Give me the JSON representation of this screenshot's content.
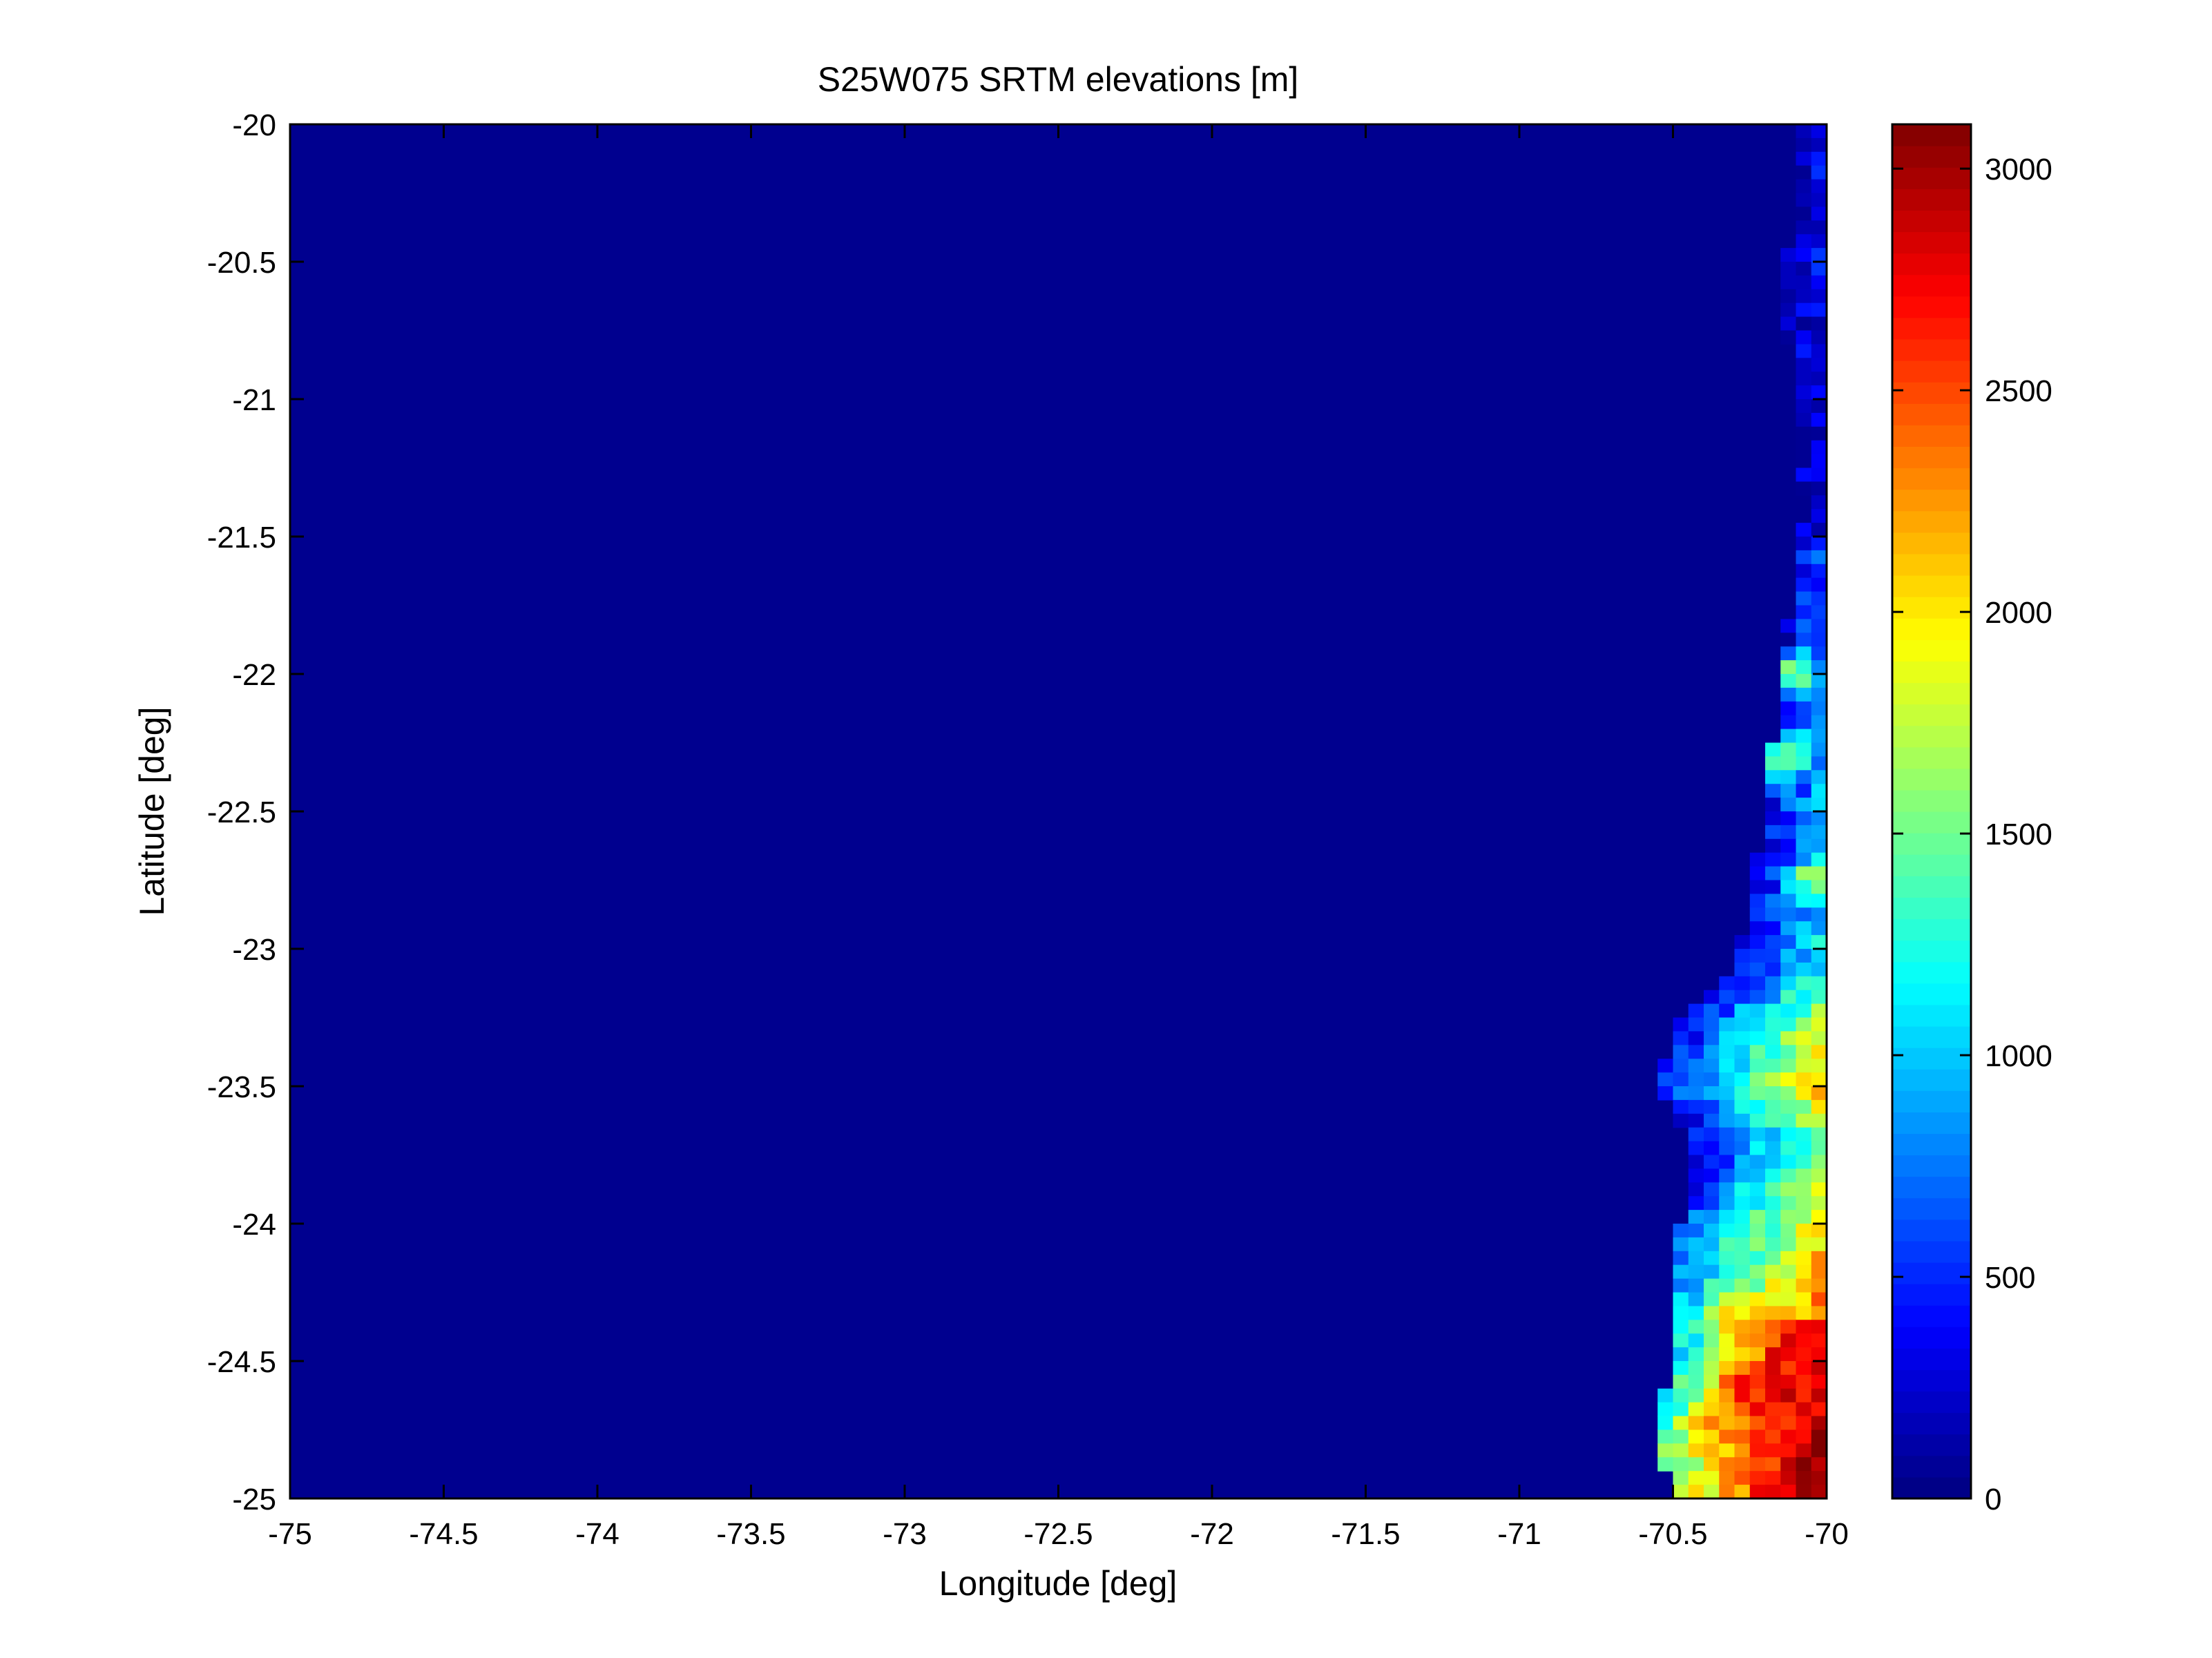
{
  "chart_data": {
    "type": "heatmap",
    "title": "S25W075 SRTM elevations [m]",
    "xlabel": "Longitude [deg]",
    "ylabel": "Latitude [deg]",
    "xlim": [
      -75,
      -70
    ],
    "ylim": [
      -25,
      -20
    ],
    "x_ticks": [
      -75,
      -74.5,
      -74,
      -73.5,
      -73,
      -72.5,
      -72,
      -71.5,
      -71,
      -70.5,
      -70
    ],
    "x_tick_labels": [
      "-75",
      "-74.5",
      "-74",
      "-73.5",
      "-73",
      "-72.5",
      "-72",
      "-71.5",
      "-71",
      "-70.5",
      "-70"
    ],
    "y_ticks": [
      -20,
      -20.5,
      -21,
      -21.5,
      -22,
      -22.5,
      -23,
      -23.5,
      -24,
      -24.5,
      -25
    ],
    "y_tick_labels": [
      "-20",
      "-20.5",
      "-21",
      "-21.5",
      "-22",
      "-22.5",
      "-23",
      "-23.5",
      "-24",
      "-24.5",
      "-25"
    ],
    "colorbar": {
      "colormap": "jet",
      "clim": [
        0,
        3100
      ],
      "ticks": [
        0,
        500,
        1000,
        1500,
        2000,
        2500,
        3000
      ],
      "tick_labels": [
        "0",
        "500",
        "1000",
        "1500",
        "2000",
        "2500",
        "3000"
      ]
    },
    "ocean_value": 0,
    "coastline": [
      {
        "lat": -20.0,
        "lon": -70.09
      },
      {
        "lat": -20.3,
        "lon": -70.12
      },
      {
        "lat": -20.6,
        "lon": -70.13
      },
      {
        "lat": -21.0,
        "lon": -70.12
      },
      {
        "lat": -21.4,
        "lon": -70.07
      },
      {
        "lat": -21.6,
        "lon": -70.11
      },
      {
        "lat": -21.9,
        "lon": -70.13
      },
      {
        "lat": -22.2,
        "lon": -70.17
      },
      {
        "lat": -22.6,
        "lon": -70.22
      },
      {
        "lat": -22.9,
        "lon": -70.26
      },
      {
        "lat": -23.1,
        "lon": -70.3
      },
      {
        "lat": -23.25,
        "lon": -70.47
      },
      {
        "lat": -23.5,
        "lon": -70.57
      },
      {
        "lat": -23.7,
        "lon": -70.42
      },
      {
        "lat": -23.85,
        "lon": -70.46
      },
      {
        "lat": -24.2,
        "lon": -70.5
      },
      {
        "lat": -24.5,
        "lon": -70.52
      },
      {
        "lat": -24.8,
        "lon": -70.54
      },
      {
        "lat": -25.0,
        "lon": -70.5
      }
    ],
    "highland_spots": [
      {
        "lat": -24.6,
        "lon": -70.2,
        "elev": 2800,
        "radius_deg": 0.25
      },
      {
        "lat": -24.45,
        "lon": -70.1,
        "elev": 3000,
        "radius_deg": 0.12
      },
      {
        "lat": -24.85,
        "lon": -70.15,
        "elev": 2700,
        "radius_deg": 0.18
      },
      {
        "lat": -24.35,
        "lon": -70.3,
        "elev": 2300,
        "radius_deg": 0.12
      },
      {
        "lat": -24.75,
        "lon": -70.38,
        "elev": 2200,
        "radius_deg": 0.12
      },
      {
        "lat": -24.05,
        "lon": -70.3,
        "elev": 1600,
        "radius_deg": 0.12
      },
      {
        "lat": -22.0,
        "lon": -70.1,
        "elev": 2000,
        "radius_deg": 0.1
      },
      {
        "lat": -22.75,
        "lon": -70.05,
        "elev": 1800,
        "radius_deg": 0.1
      },
      {
        "lat": -22.3,
        "lon": -70.15,
        "elev": 1500,
        "radius_deg": 0.15
      }
    ]
  }
}
